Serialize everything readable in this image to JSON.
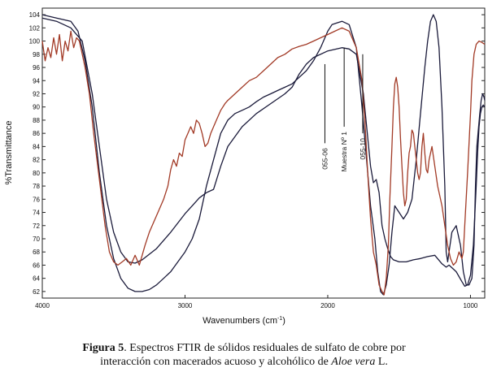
{
  "chart_data": {
    "type": "line",
    "xlabel": "Wavenumbers (cm",
    "xlabel_sup": "-1",
    "xlabel_close": ")",
    "ylabel": "%Transmittance",
    "xlim": [
      4000,
      900
    ],
    "ylim": [
      61,
      105
    ],
    "x_ticks": [
      4000,
      3000,
      2000,
      1000
    ],
    "y_ticks": [
      62,
      64,
      66,
      68,
      70,
      72,
      74,
      76,
      78,
      80,
      82,
      84,
      86,
      88,
      90,
      92,
      94,
      96,
      98,
      100,
      102,
      104
    ],
    "grid": false,
    "series": [
      {
        "color": "#1a1a3a",
        "points": [
          [
            4000,
            103.5
          ],
          [
            3900,
            103
          ],
          [
            3800,
            102
          ],
          [
            3720,
            100
          ],
          [
            3650,
            92
          ],
          [
            3600,
            84
          ],
          [
            3550,
            76
          ],
          [
            3500,
            71
          ],
          [
            3450,
            68
          ],
          [
            3400,
            66.5
          ],
          [
            3350,
            66.3
          ],
          [
            3300,
            66.8
          ],
          [
            3200,
            68.5
          ],
          [
            3100,
            71
          ],
          [
            3000,
            73.8
          ],
          [
            2950,
            75
          ],
          [
            2900,
            76.2
          ],
          [
            2850,
            77
          ],
          [
            2800,
            77.5
          ],
          [
            2750,
            81
          ],
          [
            2700,
            84
          ],
          [
            2600,
            87
          ],
          [
            2500,
            89
          ],
          [
            2400,
            90.5
          ],
          [
            2300,
            92
          ],
          [
            2250,
            93
          ],
          [
            2200,
            95
          ],
          [
            2150,
            96.5
          ],
          [
            2100,
            97.5
          ],
          [
            2000,
            98.5
          ],
          [
            1900,
            99
          ],
          [
            1850,
            98.8
          ],
          [
            1800,
            98
          ],
          [
            1750,
            92
          ],
          [
            1700,
            81
          ],
          [
            1680,
            78.5
          ],
          [
            1660,
            79
          ],
          [
            1640,
            77
          ],
          [
            1620,
            72
          ],
          [
            1600,
            70
          ],
          [
            1580,
            68.5
          ],
          [
            1560,
            67.3
          ],
          [
            1540,
            66.8
          ],
          [
            1500,
            66.5
          ],
          [
            1450,
            66.5
          ],
          [
            1400,
            66.8
          ],
          [
            1350,
            67
          ],
          [
            1300,
            67.3
          ],
          [
            1250,
            67.5
          ],
          [
            1200,
            66.2
          ],
          [
            1170,
            65.7
          ],
          [
            1150,
            66
          ],
          [
            1100,
            65
          ],
          [
            1060,
            63.5
          ],
          [
            1040,
            62.8
          ],
          [
            1020,
            63
          ],
          [
            1000,
            64.5
          ],
          [
            980,
            69
          ],
          [
            960,
            78
          ],
          [
            950,
            83
          ],
          [
            940,
            87
          ],
          [
            930,
            89
          ],
          [
            920,
            90
          ],
          [
            910,
            90.3
          ],
          [
            900,
            90
          ]
        ]
      },
      {
        "color": "#1a1a3a",
        "points": [
          [
            4000,
            104
          ],
          [
            3900,
            103.5
          ],
          [
            3800,
            103
          ],
          [
            3750,
            101.5
          ],
          [
            3700,
            97
          ],
          [
            3650,
            90
          ],
          [
            3600,
            80
          ],
          [
            3550,
            72
          ],
          [
            3500,
            67
          ],
          [
            3450,
            64
          ],
          [
            3400,
            62.5
          ],
          [
            3350,
            62
          ],
          [
            3300,
            62
          ],
          [
            3250,
            62.3
          ],
          [
            3200,
            63
          ],
          [
            3150,
            64
          ],
          [
            3100,
            65
          ],
          [
            3050,
            66.5
          ],
          [
            3000,
            68
          ],
          [
            2950,
            70
          ],
          [
            2900,
            73
          ],
          [
            2850,
            78
          ],
          [
            2800,
            82
          ],
          [
            2750,
            86
          ],
          [
            2700,
            88
          ],
          [
            2650,
            89
          ],
          [
            2600,
            89.5
          ],
          [
            2550,
            90
          ],
          [
            2500,
            90.8
          ],
          [
            2450,
            91.5
          ],
          [
            2400,
            92
          ],
          [
            2350,
            92.5
          ],
          [
            2300,
            93
          ],
          [
            2250,
            93.5
          ],
          [
            2200,
            94.5
          ],
          [
            2150,
            95.5
          ],
          [
            2100,
            97
          ],
          [
            2050,
            99
          ],
          [
            2000,
            101.5
          ],
          [
            1970,
            102.5
          ],
          [
            1930,
            102.8
          ],
          [
            1900,
            103
          ],
          [
            1850,
            102.5
          ],
          [
            1800,
            99
          ],
          [
            1760,
            90
          ],
          [
            1720,
            80
          ],
          [
            1700,
            75
          ],
          [
            1670,
            70
          ],
          [
            1650,
            65
          ],
          [
            1630,
            62
          ],
          [
            1610,
            61.5
          ],
          [
            1590,
            63
          ],
          [
            1570,
            66
          ],
          [
            1550,
            71
          ],
          [
            1530,
            75
          ],
          [
            1500,
            74
          ],
          [
            1470,
            73
          ],
          [
            1440,
            74
          ],
          [
            1410,
            76
          ],
          [
            1380,
            82
          ],
          [
            1350,
            89
          ],
          [
            1320,
            96
          ],
          [
            1300,
            100
          ],
          [
            1280,
            103
          ],
          [
            1260,
            104
          ],
          [
            1240,
            103
          ],
          [
            1220,
            99
          ],
          [
            1200,
            90
          ],
          [
            1180,
            78
          ],
          [
            1170,
            68
          ],
          [
            1160,
            66.5
          ],
          [
            1150,
            68
          ],
          [
            1130,
            71
          ],
          [
            1100,
            72
          ],
          [
            1070,
            69
          ],
          [
            1050,
            65
          ],
          [
            1030,
            63
          ],
          [
            1010,
            63
          ],
          [
            990,
            64
          ],
          [
            975,
            69
          ],
          [
            965,
            78
          ],
          [
            955,
            84
          ],
          [
            945,
            86.5
          ],
          [
            935,
            89
          ],
          [
            925,
            91
          ],
          [
            915,
            92
          ],
          [
            905,
            91.5
          ],
          [
            900,
            91
          ]
        ]
      },
      {
        "color": "#a23a26",
        "points": [
          [
            4000,
            100
          ],
          [
            3980,
            97
          ],
          [
            3960,
            99
          ],
          [
            3940,
            97.5
          ],
          [
            3920,
            100.5
          ],
          [
            3900,
            98
          ],
          [
            3880,
            101
          ],
          [
            3860,
            97
          ],
          [
            3840,
            100
          ],
          [
            3820,
            98.5
          ],
          [
            3800,
            101.5
          ],
          [
            3780,
            99
          ],
          [
            3760,
            100.5
          ],
          [
            3740,
            100
          ],
          [
            3720,
            98
          ],
          [
            3700,
            96
          ],
          [
            3670,
            92
          ],
          [
            3640,
            86
          ],
          [
            3600,
            79
          ],
          [
            3560,
            72
          ],
          [
            3530,
            68
          ],
          [
            3500,
            66.5
          ],
          [
            3470,
            66
          ],
          [
            3440,
            66.5
          ],
          [
            3410,
            67
          ],
          [
            3380,
            66
          ],
          [
            3350,
            67.5
          ],
          [
            3320,
            66
          ],
          [
            3300,
            67.5
          ],
          [
            3280,
            69
          ],
          [
            3250,
            71
          ],
          [
            3200,
            73.5
          ],
          [
            3150,
            76
          ],
          [
            3120,
            78
          ],
          [
            3100,
            80.5
          ],
          [
            3080,
            82
          ],
          [
            3060,
            81
          ],
          [
            3040,
            83
          ],
          [
            3020,
            82.5
          ],
          [
            3000,
            85
          ],
          [
            2980,
            86
          ],
          [
            2960,
            87
          ],
          [
            2940,
            86
          ],
          [
            2920,
            88
          ],
          [
            2900,
            87.5
          ],
          [
            2880,
            86
          ],
          [
            2860,
            84
          ],
          [
            2840,
            84.5
          ],
          [
            2820,
            86
          ],
          [
            2800,
            87
          ],
          [
            2780,
            88
          ],
          [
            2750,
            89.5
          ],
          [
            2720,
            90.5
          ],
          [
            2700,
            91
          ],
          [
            2650,
            92
          ],
          [
            2600,
            93
          ],
          [
            2550,
            94
          ],
          [
            2500,
            94.5
          ],
          [
            2450,
            95.5
          ],
          [
            2400,
            96.5
          ],
          [
            2350,
            97.5
          ],
          [
            2300,
            98
          ],
          [
            2250,
            98.8
          ],
          [
            2200,
            99.2
          ],
          [
            2150,
            99.5
          ],
          [
            2100,
            100
          ],
          [
            2050,
            100.5
          ],
          [
            2000,
            101
          ],
          [
            1950,
            101.5
          ],
          [
            1900,
            102
          ],
          [
            1850,
            101.5
          ],
          [
            1800,
            99
          ],
          [
            1760,
            94
          ],
          [
            1740,
            88
          ],
          [
            1720,
            80
          ],
          [
            1700,
            73
          ],
          [
            1680,
            68
          ],
          [
            1660,
            66
          ],
          [
            1640,
            63
          ],
          [
            1620,
            62
          ],
          [
            1605,
            61.5
          ],
          [
            1590,
            64
          ],
          [
            1575,
            69
          ],
          [
            1565,
            76
          ],
          [
            1550,
            84
          ],
          [
            1540,
            90
          ],
          [
            1530,
            93.5
          ],
          [
            1520,
            94.5
          ],
          [
            1510,
            93
          ],
          [
            1500,
            90
          ],
          [
            1490,
            85
          ],
          [
            1480,
            81
          ],
          [
            1470,
            77
          ],
          [
            1460,
            75
          ],
          [
            1450,
            76
          ],
          [
            1440,
            80
          ],
          [
            1430,
            83
          ],
          [
            1420,
            84
          ],
          [
            1410,
            86.5
          ],
          [
            1400,
            86
          ],
          [
            1390,
            84
          ],
          [
            1380,
            82
          ],
          [
            1370,
            80
          ],
          [
            1360,
            79
          ],
          [
            1350,
            80
          ],
          [
            1340,
            84
          ],
          [
            1330,
            86
          ],
          [
            1320,
            83
          ],
          [
            1310,
            80.5
          ],
          [
            1300,
            80
          ],
          [
            1290,
            82
          ],
          [
            1270,
            84
          ],
          [
            1250,
            81
          ],
          [
            1230,
            78
          ],
          [
            1200,
            75
          ],
          [
            1180,
            72
          ],
          [
            1160,
            69
          ],
          [
            1140,
            67
          ],
          [
            1120,
            66
          ],
          [
            1100,
            66.5
          ],
          [
            1080,
            68
          ],
          [
            1060,
            67
          ],
          [
            1050,
            68
          ],
          [
            1040,
            72
          ],
          [
            1020,
            80
          ],
          [
            1000,
            89
          ],
          [
            990,
            94
          ],
          [
            975,
            98
          ],
          [
            960,
            99.5
          ],
          [
            940,
            100
          ],
          [
            920,
            99.8
          ],
          [
            900,
            99.5
          ]
        ]
      }
    ],
    "annotations": [
      {
        "label": "055-06",
        "x": 2020,
        "y_top": 96.5
      },
      {
        "label": "Muestra Nº 1",
        "x": 1885,
        "y_top": 99
      },
      {
        "label": "055-10",
        "x": 1755,
        "y_top": 98
      }
    ]
  },
  "caption": {
    "figure_label": "Figura 5",
    "text_line1": ". Espectros FTIR de sólidos residuales de sulfato de cobre por",
    "text_line2_a": "interacción con macerados acuoso y alcohólico de ",
    "text_line2_italic": "Aloe vera",
    "text_line2_b": " L."
  }
}
